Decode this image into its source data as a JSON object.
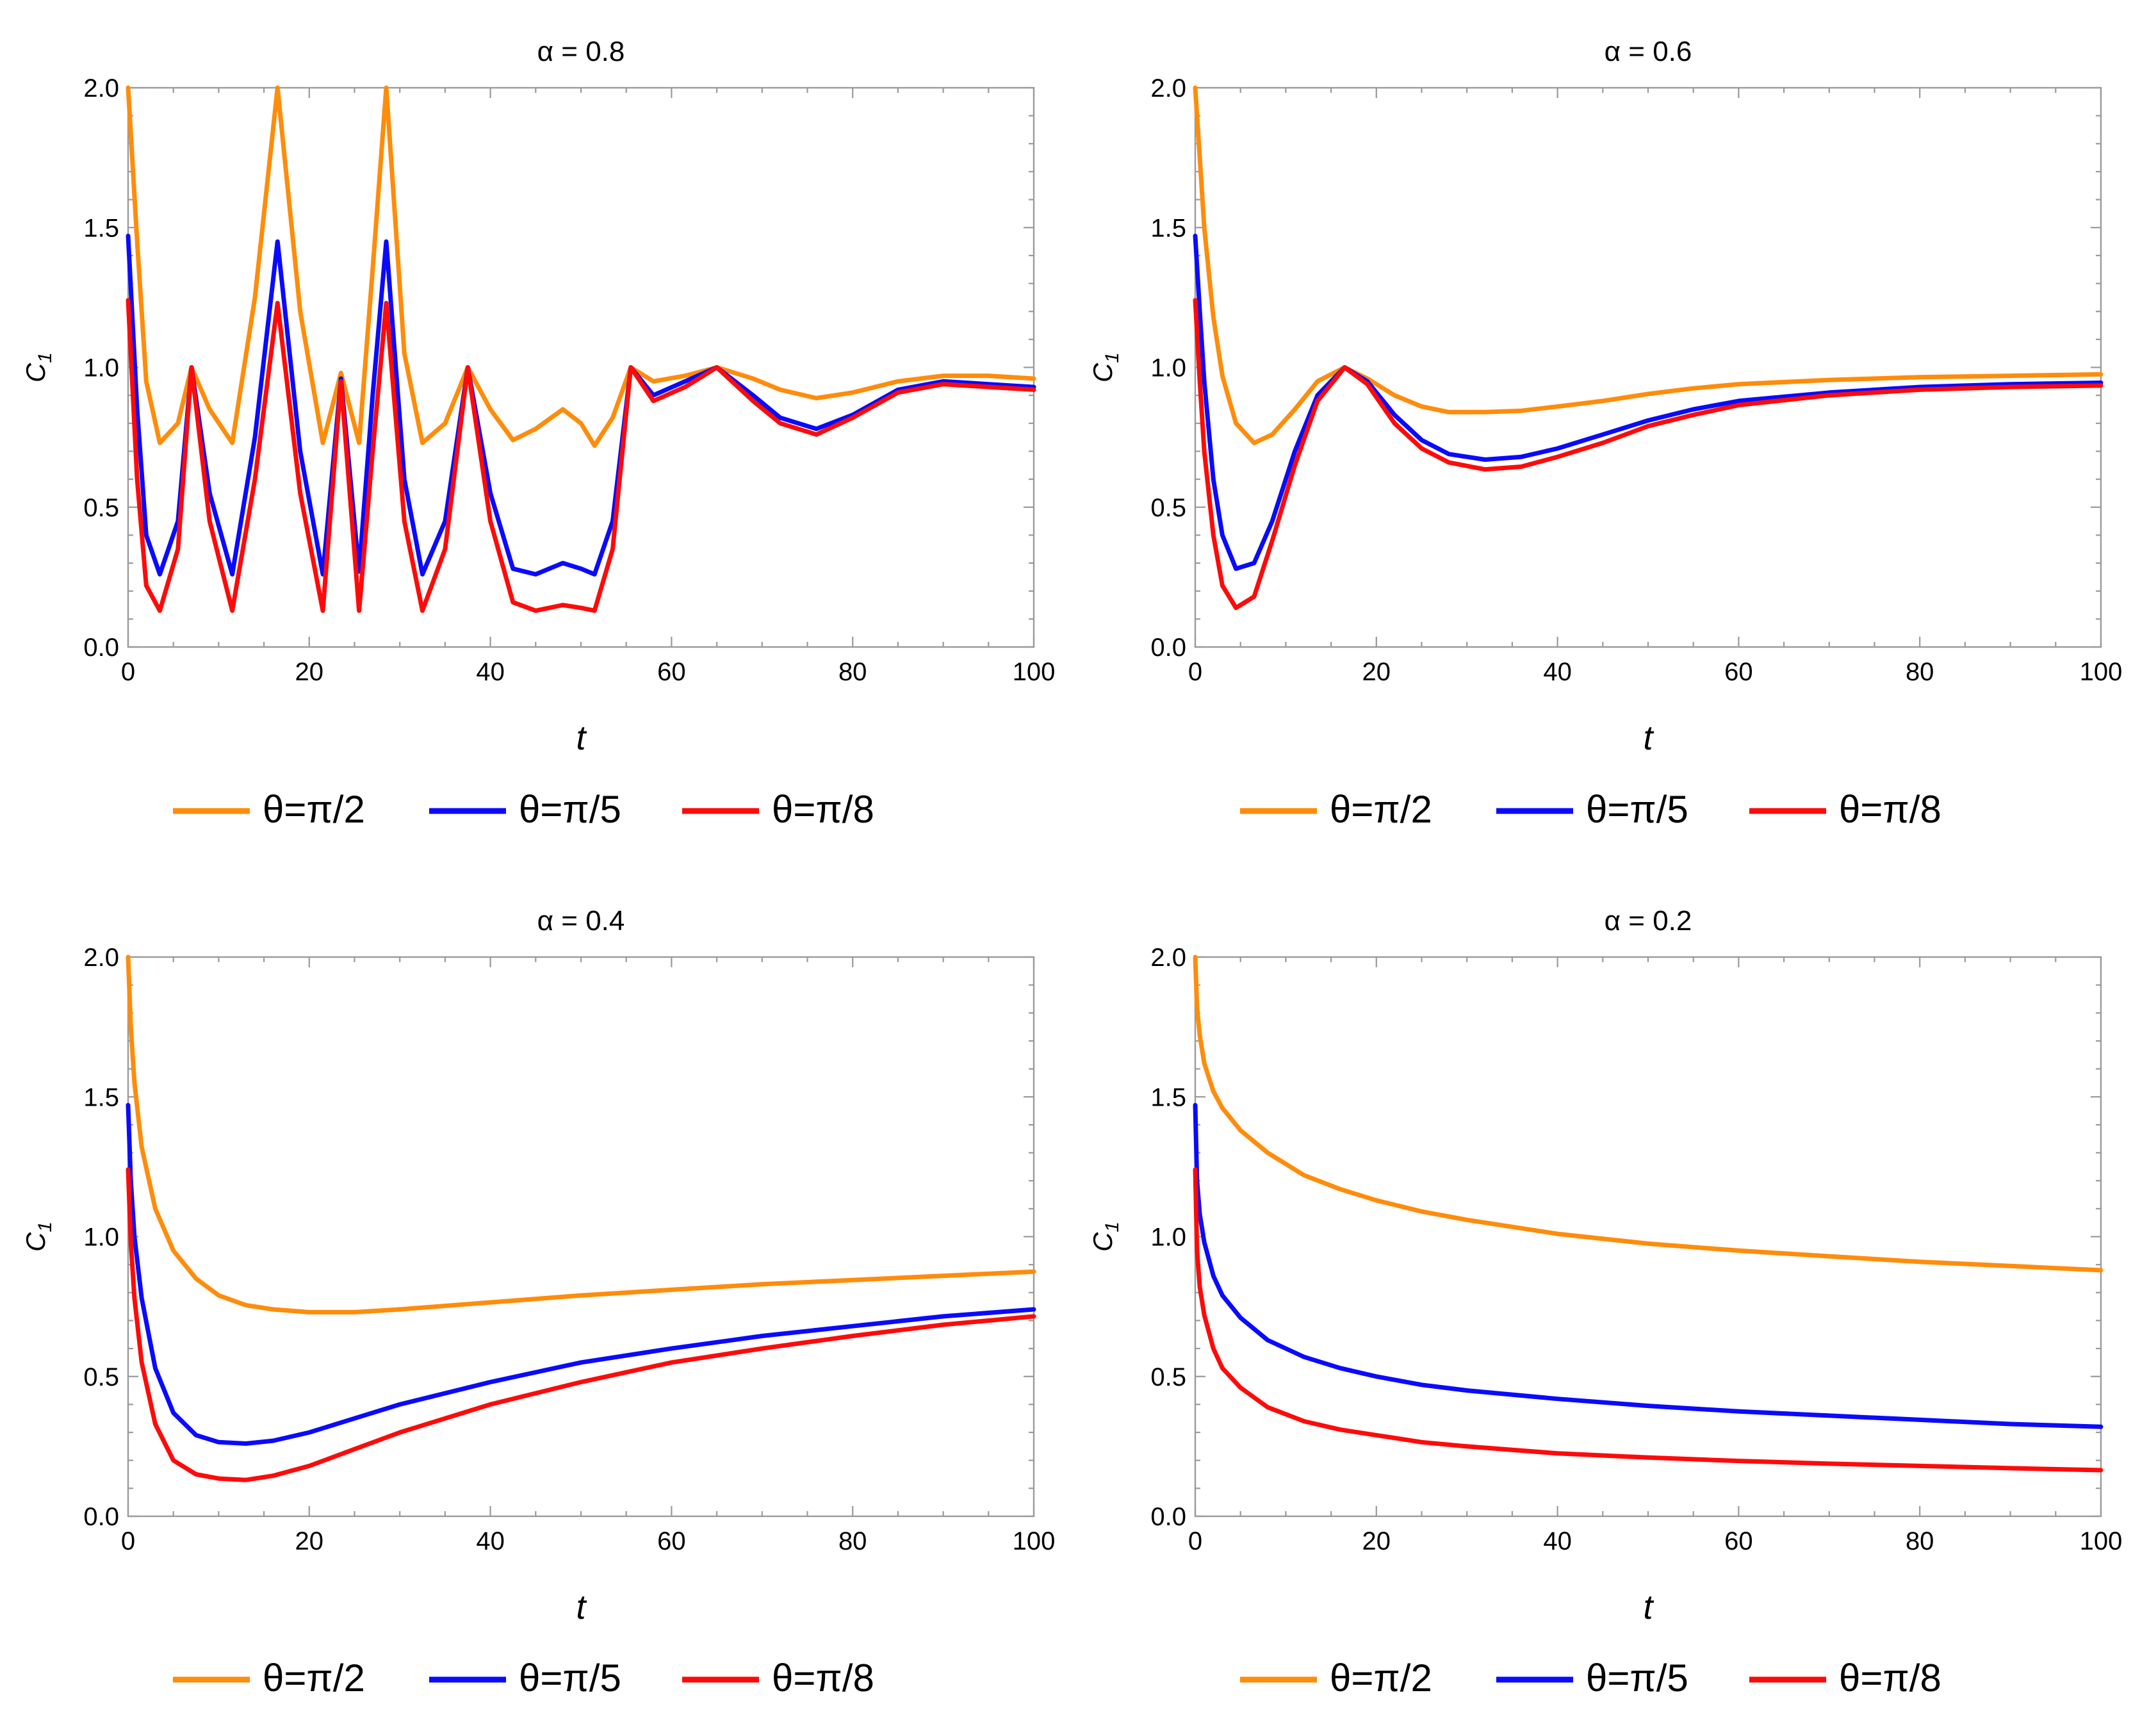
{
  "figure": {
    "ylabel": "C",
    "ylabel_sub": "1"
  },
  "chart_data": [
    {
      "type": "line",
      "title": "α = 0.8",
      "xlabel": "t",
      "ylabel": "C1",
      "xlim": [
        0,
        100
      ],
      "ylim": [
        0,
        2
      ],
      "xticks": [
        "0",
        "20",
        "40",
        "60",
        "80",
        "100"
      ],
      "yticks": [
        "0.0",
        "0.5",
        "1.0",
        "1.5",
        "2.0"
      ],
      "legend": {
        "placement": "bottom",
        "entries": [
          "θ=π/2",
          "θ=π/5",
          "θ=π/8"
        ]
      },
      "x": [
        0,
        1,
        2,
        3.5,
        5.5,
        7,
        9,
        11.5,
        14,
        16.5,
        19,
        21.5,
        23.5,
        25.5,
        27,
        28.5,
        30.5,
        32.5,
        35,
        37.5,
        40,
        42.5,
        45,
        48,
        50,
        51.5,
        53.5,
        55.5,
        58,
        61.5,
        65,
        69,
        72,
        76,
        80,
        85,
        90,
        95,
        100
      ],
      "series": [
        {
          "name": "θ=π/2",
          "color": "#ff8c0a",
          "values": [
            2.0,
            1.45,
            0.95,
            0.73,
            0.8,
            1.0,
            0.85,
            0.73,
            1.25,
            2.0,
            1.2,
            0.73,
            0.98,
            0.73,
            1.35,
            2.0,
            1.05,
            0.73,
            0.8,
            1.0,
            0.85,
            0.74,
            0.78,
            0.85,
            0.8,
            0.72,
            0.82,
            1.0,
            0.95,
            0.97,
            1.0,
            0.96,
            0.92,
            0.89,
            0.91,
            0.95,
            0.97,
            0.97,
            0.96
          ]
        },
        {
          "name": "θ=π/5",
          "color": "#0a0aff",
          "values": [
            1.47,
            0.85,
            0.4,
            0.26,
            0.45,
            1.0,
            0.55,
            0.26,
            0.75,
            1.45,
            0.7,
            0.26,
            0.96,
            0.27,
            0.9,
            1.45,
            0.6,
            0.26,
            0.45,
            1.0,
            0.55,
            0.28,
            0.26,
            0.3,
            0.28,
            0.26,
            0.45,
            1.0,
            0.9,
            0.95,
            1.0,
            0.9,
            0.82,
            0.78,
            0.83,
            0.92,
            0.95,
            0.94,
            0.93
          ]
        },
        {
          "name": "θ=π/8",
          "color": "#ff0a0a",
          "values": [
            1.24,
            0.6,
            0.22,
            0.13,
            0.35,
            1.0,
            0.45,
            0.13,
            0.6,
            1.23,
            0.55,
            0.13,
            0.95,
            0.13,
            0.7,
            1.23,
            0.45,
            0.13,
            0.35,
            1.0,
            0.45,
            0.16,
            0.13,
            0.15,
            0.14,
            0.13,
            0.35,
            1.0,
            0.88,
            0.93,
            1.0,
            0.88,
            0.8,
            0.76,
            0.82,
            0.91,
            0.94,
            0.93,
            0.92
          ]
        }
      ]
    },
    {
      "type": "line",
      "title": "α = 0.6",
      "xlabel": "t",
      "ylabel": "C1",
      "xlim": [
        0,
        100
      ],
      "ylim": [
        0,
        2
      ],
      "xticks": [
        "0",
        "20",
        "40",
        "60",
        "80",
        "100"
      ],
      "yticks": [
        "0.0",
        "0.5",
        "1.0",
        "1.5",
        "2.0"
      ],
      "legend": {
        "placement": "bottom",
        "entries": [
          "θ=π/2",
          "θ=π/5",
          "θ=π/8"
        ]
      },
      "x": [
        0,
        0.5,
        1,
        2,
        3,
        4.5,
        6.5,
        8.5,
        11,
        13.5,
        16.5,
        19,
        22,
        25,
        28,
        32,
        36,
        40,
        45,
        50,
        55,
        60,
        70,
        80,
        90,
        100
      ],
      "series": [
        {
          "name": "θ=π/2",
          "color": "#ff8c0a",
          "values": [
            2.0,
            1.75,
            1.5,
            1.18,
            0.97,
            0.8,
            0.73,
            0.76,
            0.85,
            0.95,
            1.0,
            0.96,
            0.9,
            0.86,
            0.84,
            0.84,
            0.845,
            0.86,
            0.88,
            0.905,
            0.925,
            0.94,
            0.955,
            0.965,
            0.97,
            0.975
          ]
        },
        {
          "name": "θ=π/5",
          "color": "#0a0aff",
          "values": [
            1.47,
            1.2,
            0.95,
            0.6,
            0.4,
            0.28,
            0.3,
            0.45,
            0.7,
            0.9,
            1.0,
            0.95,
            0.83,
            0.74,
            0.69,
            0.67,
            0.68,
            0.71,
            0.76,
            0.81,
            0.85,
            0.88,
            0.91,
            0.93,
            0.94,
            0.945
          ]
        },
        {
          "name": "θ=π/8",
          "color": "#ff0a0a",
          "values": [
            1.24,
            0.95,
            0.7,
            0.4,
            0.22,
            0.14,
            0.18,
            0.38,
            0.65,
            0.88,
            1.0,
            0.94,
            0.8,
            0.71,
            0.66,
            0.635,
            0.645,
            0.68,
            0.73,
            0.79,
            0.83,
            0.865,
            0.9,
            0.92,
            0.93,
            0.935
          ]
        }
      ]
    },
    {
      "type": "line",
      "title": "α = 0.4",
      "xlabel": "t",
      "ylabel": "C1",
      "xlim": [
        0,
        100
      ],
      "ylim": [
        0,
        2
      ],
      "xticks": [
        "0",
        "20",
        "40",
        "60",
        "80",
        "100"
      ],
      "yticks": [
        "0.0",
        "0.5",
        "1.0",
        "1.5",
        "2.0"
      ],
      "legend": {
        "placement": "bottom",
        "entries": [
          "θ=π/2",
          "θ=π/5",
          "θ=π/8"
        ]
      },
      "x": [
        0,
        0.3,
        0.7,
        1.5,
        3,
        5,
        7.5,
        10,
        13,
        16,
        20,
        25,
        30,
        40,
        50,
        60,
        70,
        80,
        90,
        100
      ],
      "series": [
        {
          "name": "θ=π/2",
          "color": "#ff8c0a",
          "values": [
            2.0,
            1.75,
            1.55,
            1.32,
            1.1,
            0.95,
            0.85,
            0.79,
            0.755,
            0.74,
            0.73,
            0.73,
            0.74,
            0.765,
            0.79,
            0.81,
            0.83,
            0.845,
            0.86,
            0.875
          ]
        },
        {
          "name": "θ=π/5",
          "color": "#0a0aff",
          "values": [
            1.47,
            1.2,
            1.0,
            0.78,
            0.53,
            0.37,
            0.29,
            0.265,
            0.26,
            0.27,
            0.3,
            0.35,
            0.4,
            0.48,
            0.55,
            0.6,
            0.645,
            0.68,
            0.715,
            0.74
          ]
        },
        {
          "name": "θ=π/8",
          "color": "#ff0a0a",
          "values": [
            1.24,
            0.98,
            0.78,
            0.55,
            0.33,
            0.2,
            0.15,
            0.135,
            0.13,
            0.145,
            0.18,
            0.24,
            0.3,
            0.4,
            0.48,
            0.55,
            0.6,
            0.645,
            0.685,
            0.715
          ]
        }
      ]
    },
    {
      "type": "line",
      "title": "α = 0.2",
      "xlabel": "t",
      "ylabel": "C1",
      "xlim": [
        0,
        100
      ],
      "ylim": [
        0,
        2
      ],
      "xticks": [
        "0",
        "20",
        "40",
        "60",
        "80",
        "100"
      ],
      "yticks": [
        "0.0",
        "0.5",
        "1.0",
        "1.5",
        "2.0"
      ],
      "legend": {
        "placement": "bottom",
        "entries": [
          "θ=π/2",
          "θ=π/5",
          "θ=π/8"
        ]
      },
      "x": [
        0,
        0.2,
        0.5,
        1,
        2,
        3,
        5,
        8,
        12,
        16,
        20,
        25,
        30,
        40,
        50,
        60,
        70,
        80,
        90,
        100
      ],
      "series": [
        {
          "name": "θ=π/2",
          "color": "#ff8c0a",
          "values": [
            2.0,
            1.82,
            1.72,
            1.62,
            1.52,
            1.46,
            1.38,
            1.3,
            1.22,
            1.17,
            1.13,
            1.09,
            1.06,
            1.01,
            0.975,
            0.95,
            0.93,
            0.91,
            0.895,
            0.88
          ]
        },
        {
          "name": "θ=π/5",
          "color": "#0a0aff",
          "values": [
            1.47,
            1.2,
            1.08,
            0.98,
            0.86,
            0.79,
            0.71,
            0.63,
            0.57,
            0.53,
            0.5,
            0.47,
            0.45,
            0.42,
            0.395,
            0.375,
            0.36,
            0.345,
            0.33,
            0.32
          ]
        },
        {
          "name": "θ=π/8",
          "color": "#ff0a0a",
          "values": [
            1.24,
            0.95,
            0.82,
            0.72,
            0.6,
            0.53,
            0.46,
            0.39,
            0.34,
            0.31,
            0.29,
            0.265,
            0.25,
            0.225,
            0.21,
            0.198,
            0.188,
            0.18,
            0.172,
            0.165
          ]
        }
      ]
    }
  ]
}
